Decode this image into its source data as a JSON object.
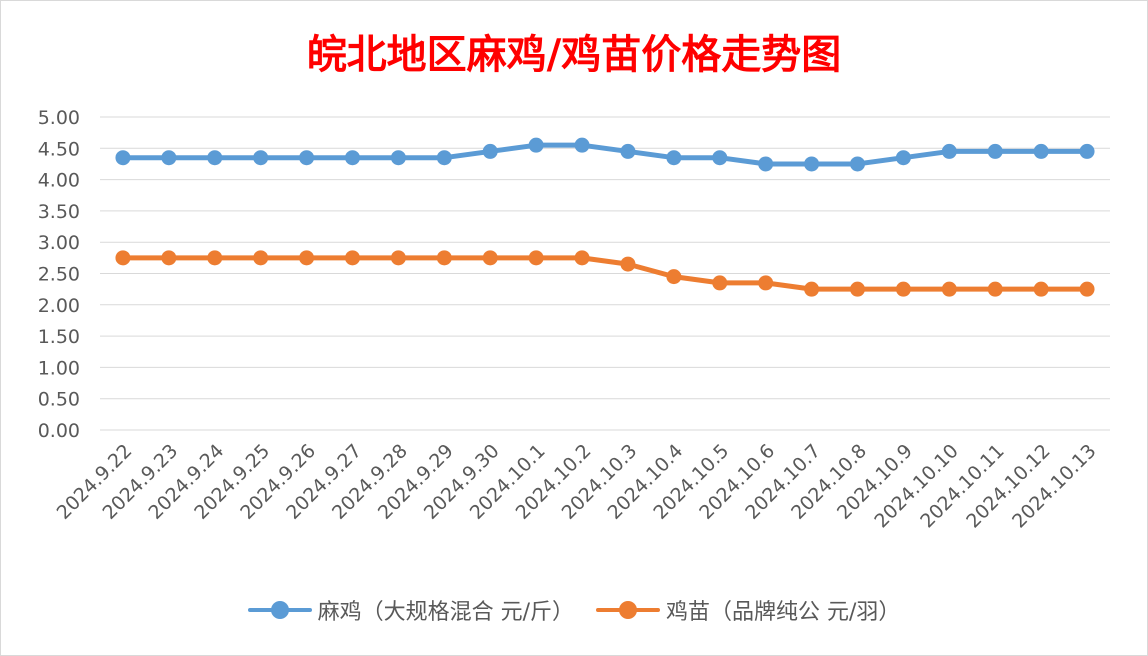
{
  "chart_data": {
    "type": "line",
    "title": "皖北地区麻鸡/鸡苗价格走势图",
    "categories": [
      "2024.9.22",
      "2024.9.23",
      "2024.9.24",
      "2024.9.25",
      "2024.9.26",
      "2024.9.27",
      "2024.9.28",
      "2024.9.29",
      "2024.9.30",
      "2024.10.1",
      "2024.10.2",
      "2024.10.3",
      "2024.10.4",
      "2024.10.5",
      "2024.10.6",
      "2024.10.7",
      "2024.10.8",
      "2024.10.9",
      "2024.10.10",
      "2024.10.11",
      "2024.10.12",
      "2024.10.13"
    ],
    "y_ticks": [
      "0.00",
      "0.50",
      "1.00",
      "1.50",
      "2.00",
      "2.50",
      "3.00",
      "3.50",
      "4.00",
      "4.50",
      "5.00"
    ],
    "ylim": [
      0,
      5
    ],
    "grid": true,
    "legend_position": "bottom",
    "series": [
      {
        "name": "麻鸡（大规格混合 元/斤）",
        "color": "#5b9bd5",
        "values": [
          4.35,
          4.35,
          4.35,
          4.35,
          4.35,
          4.35,
          4.35,
          4.35,
          4.45,
          4.55,
          4.55,
          4.45,
          4.35,
          4.35,
          4.25,
          4.25,
          4.25,
          4.35,
          4.45,
          4.45,
          4.45,
          4.45
        ]
      },
      {
        "name": "鸡苗（品牌纯公 元/羽）",
        "color": "#ed7d31",
        "values": [
          2.75,
          2.75,
          2.75,
          2.75,
          2.75,
          2.75,
          2.75,
          2.75,
          2.75,
          2.75,
          2.75,
          2.65,
          2.45,
          2.35,
          2.35,
          2.25,
          2.25,
          2.25,
          2.25,
          2.25,
          2.25,
          2.25
        ]
      }
    ]
  }
}
